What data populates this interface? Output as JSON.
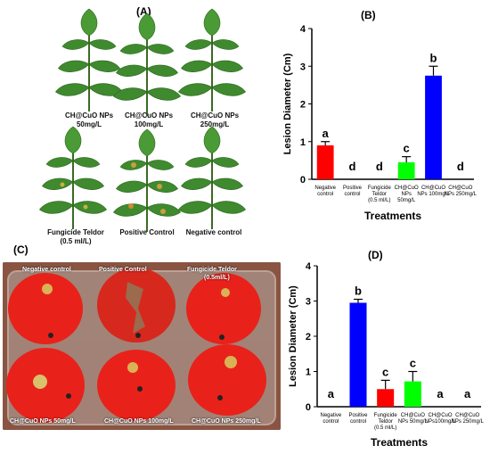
{
  "panels": {
    "a": "(A)",
    "b": "(B)",
    "c": "(C)",
    "d": "(D)"
  },
  "leaves": [
    {
      "line1": "CH@CuO NPs",
      "line2": "50mg/L"
    },
    {
      "line1": "CH@CuO NPs",
      "line2": "100mg/L"
    },
    {
      "line1": "CH@CuO NPs",
      "line2": "250mg/L"
    },
    {
      "line1": "Fungicide Teldor",
      "line2": "(0.5 ml/L)"
    },
    {
      "line1": "Positive Control",
      "line2": ""
    },
    {
      "line1": "Negative control",
      "line2": ""
    }
  ],
  "photo_labels": {
    "neg": "Negative control",
    "pos": "Positive Control",
    "fung1": "Fungicide Teldor",
    "fung2": "(0.5ml/L)",
    "np50": "CH@CuO NPs 50mg/L",
    "np100": "CH@CuO NPs 100mg/L",
    "np250": "CH@CuO NPs 250mg/L"
  },
  "chart_data": [
    {
      "type": "bar",
      "panel": "B",
      "ylabel": "Lesion Diameter (Cm)",
      "xlabel": "Treatments",
      "ylim": [
        0,
        4
      ],
      "yticks": [
        0,
        1,
        2,
        3,
        4
      ],
      "categories": [
        [
          "Negative",
          "control"
        ],
        [
          "Positive",
          "control"
        ],
        [
          "Fungicide",
          "Teldor",
          "(0.5 ml/L)"
        ],
        [
          "CH@CuO",
          "NPs",
          "50mg/L"
        ],
        [
          "CH@CuO",
          "NPs 100mg/L"
        ],
        [
          "CH@CuO",
          "NPs 250mg/L"
        ]
      ],
      "values": [
        0.9,
        0,
        0,
        0.45,
        2.75,
        0
      ],
      "errors": [
        0.1,
        0,
        0,
        0.15,
        0.25,
        0
      ],
      "letters": [
        "a",
        "d",
        "d",
        "c",
        "b",
        "d"
      ],
      "colors": [
        "#ff0000",
        "#ffffff",
        "#ffffff",
        "#00ff00",
        "#0000ff",
        "#ffffff"
      ],
      "grid": false
    },
    {
      "type": "bar",
      "panel": "D",
      "ylabel": "Lesion Diameter (Cm)",
      "xlabel": "Treatments",
      "ylim": [
        0,
        4
      ],
      "yticks": [
        0,
        1,
        2,
        3,
        4
      ],
      "categories": [
        [
          "Negative",
          "control"
        ],
        [
          "Positive",
          "control"
        ],
        [
          "Fungicide",
          "Teldor",
          "(0.5 ml/L)"
        ],
        [
          "CH@CuO",
          "NPs 50mg/L"
        ],
        [
          "CH@CuO",
          "NPs100mg/L"
        ],
        [
          "CH@CuO",
          "NPs 250mg/L"
        ]
      ],
      "values": [
        0,
        2.95,
        0.5,
        0.72,
        0,
        0
      ],
      "errors": [
        0,
        0.1,
        0.25,
        0.28,
        0,
        0
      ],
      "letters": [
        "a",
        "b",
        "c",
        "c",
        "a",
        "a"
      ],
      "colors": [
        "#ffffff",
        "#0000ff",
        "#ff0000",
        "#00ff00",
        "#ffffff",
        "#ffffff"
      ],
      "grid": false
    }
  ]
}
